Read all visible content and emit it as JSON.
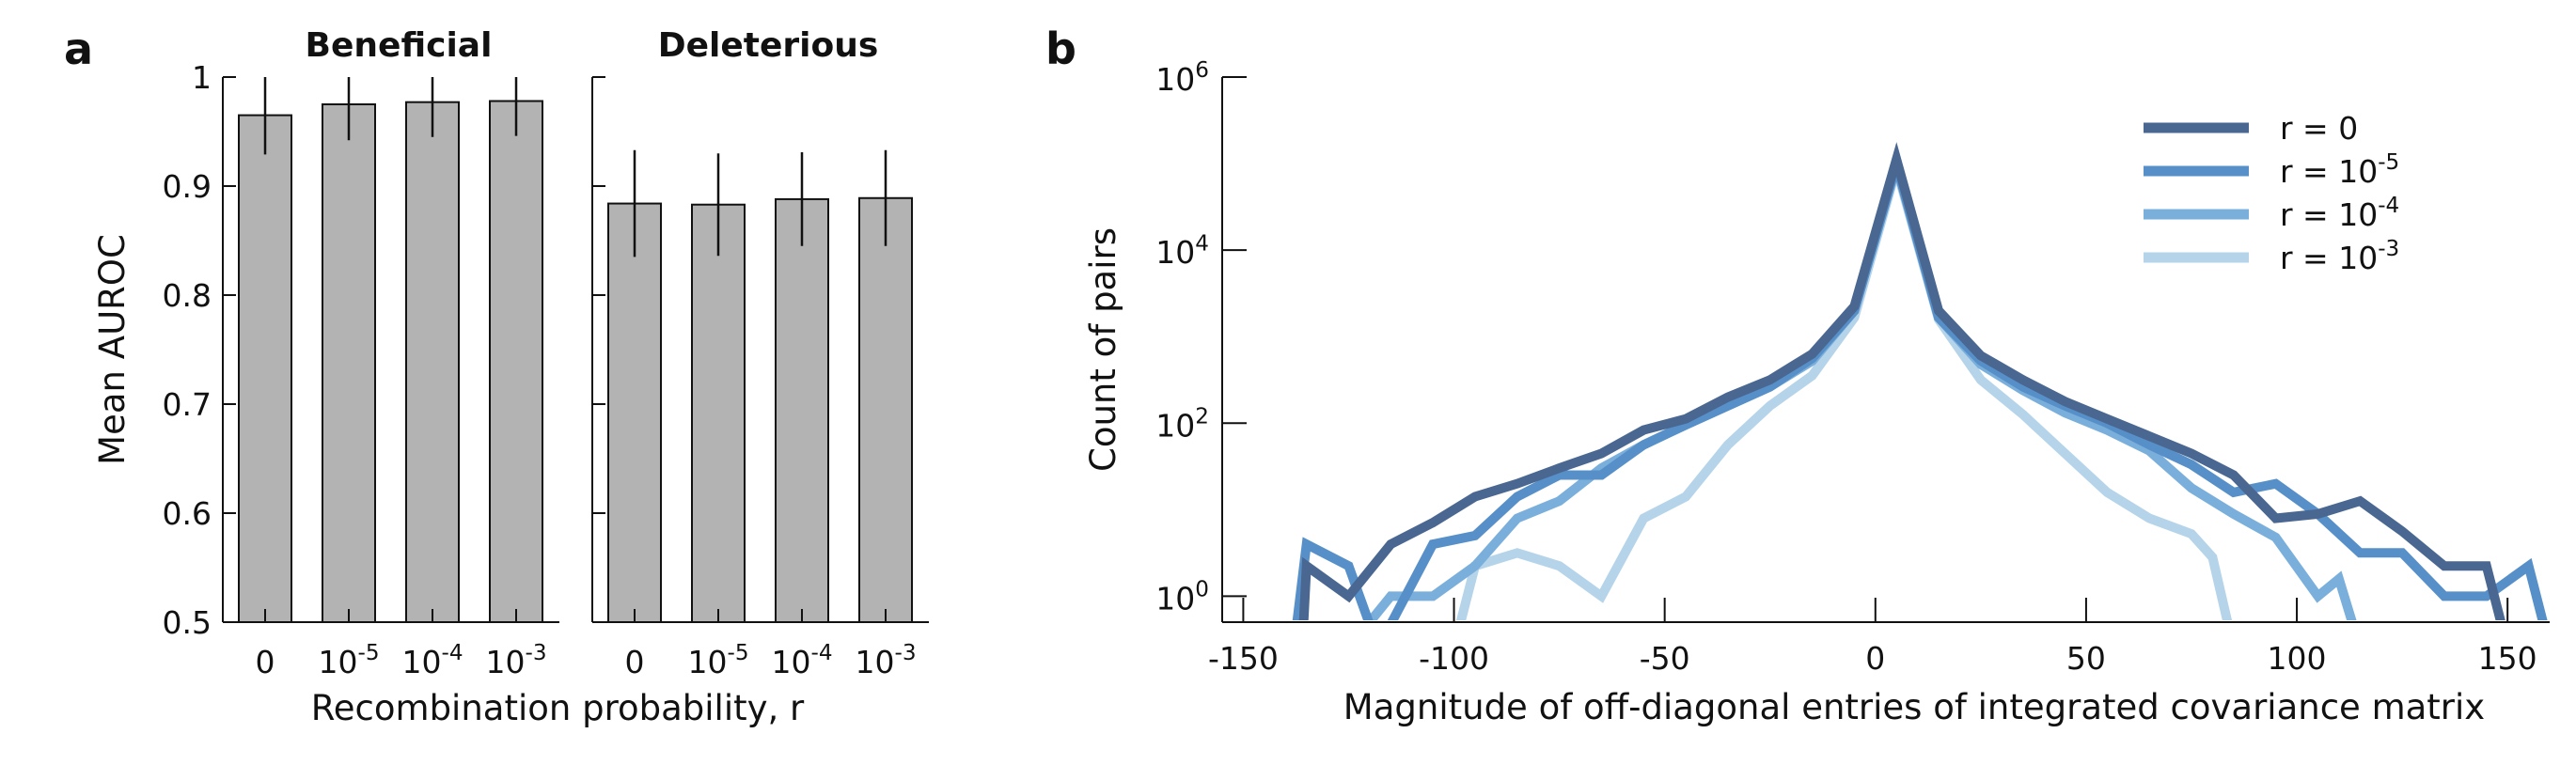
{
  "panels": {
    "a_label": "a",
    "b_label": "b"
  },
  "chart_data": [
    {
      "id": "a-left",
      "type": "bar",
      "title": "Beneficial",
      "ylabel": "Mean AUROC",
      "ylim": [
        0.5,
        1.0
      ],
      "yticks": [
        "0.5",
        "0.6",
        "0.7",
        "0.8",
        "0.9",
        "1"
      ],
      "categories": [
        {
          "base": "0",
          "exp": ""
        },
        {
          "base": "10",
          "exp": "-5"
        },
        {
          "base": "10",
          "exp": "-4"
        },
        {
          "base": "10",
          "exp": "-3"
        }
      ],
      "values": [
        0.965,
        0.975,
        0.977,
        0.978
      ],
      "errors": [
        0.036,
        0.033,
        0.032,
        0.032
      ],
      "bar_color": "#b3b3b3",
      "grid": false
    },
    {
      "id": "a-right",
      "type": "bar",
      "title": "Deleterious",
      "ylim": [
        0.5,
        1.0
      ],
      "categories": [
        {
          "base": "0",
          "exp": ""
        },
        {
          "base": "10",
          "exp": "-5"
        },
        {
          "base": "10",
          "exp": "-4"
        },
        {
          "base": "10",
          "exp": "-3"
        }
      ],
      "values": [
        0.884,
        0.883,
        0.888,
        0.889
      ],
      "errors": [
        0.049,
        0.047,
        0.043,
        0.044
      ],
      "bar_color": "#b3b3b3",
      "shared_xlabel": "Recombination probability, r",
      "grid": false
    },
    {
      "id": "b",
      "type": "line",
      "xlabel": "Magnitude of off-diagonal entries of integrated covariance matrix",
      "ylabel": "Count of pairs",
      "xlim": [
        -155,
        160
      ],
      "xticks": [
        -150,
        -100,
        -50,
        0,
        50,
        100,
        150
      ],
      "ylog": true,
      "ylim_log10": [
        -0.3,
        6.0
      ],
      "yticks": [
        {
          "base": "10",
          "exp": "0",
          "log": 0
        },
        {
          "base": "10",
          "exp": "2",
          "log": 2
        },
        {
          "base": "10",
          "exp": "4",
          "log": 4
        },
        {
          "base": "10",
          "exp": "6",
          "log": 6
        }
      ],
      "legend_position": "top-right",
      "grid": false,
      "series": [
        {
          "label": {
            "base": "r = 0",
            "exp": ""
          },
          "color": "#4a6791",
          "points": [
            [
              -136,
              -0.6
            ],
            [
              -135,
              0.35
            ],
            [
              -125,
              0.0
            ],
            [
              -115,
              0.6
            ],
            [
              -105,
              0.85
            ],
            [
              -95,
              1.15
            ],
            [
              -85,
              1.3
            ],
            [
              -75,
              1.48
            ],
            [
              -65,
              1.65
            ],
            [
              -55,
              1.92
            ],
            [
              -45,
              2.05
            ],
            [
              -35,
              2.3
            ],
            [
              -25,
              2.5
            ],
            [
              -15,
              2.8
            ],
            [
              -5,
              3.35
            ],
            [
              5,
              5.05
            ],
            [
              15,
              3.3
            ],
            [
              25,
              2.78
            ],
            [
              35,
              2.5
            ],
            [
              45,
              2.25
            ],
            [
              55,
              2.05
            ],
            [
              65,
              1.85
            ],
            [
              75,
              1.65
            ],
            [
              85,
              1.4
            ],
            [
              95,
              0.9
            ],
            [
              105,
              0.95
            ],
            [
              115,
              1.1
            ],
            [
              125,
              0.75
            ],
            [
              135,
              0.35
            ],
            [
              145,
              0.35
            ],
            [
              150,
              -0.6
            ]
          ]
        },
        {
          "label": {
            "base": "r = 10",
            "exp": "-5"
          },
          "color": "#5790c8",
          "points": [
            [
              -138,
              -0.6
            ],
            [
              -135,
              0.6
            ],
            [
              -125,
              0.35
            ],
            [
              -118,
              -0.6
            ],
            [
              -105,
              0.6
            ],
            [
              -95,
              0.7
            ],
            [
              -85,
              1.15
            ],
            [
              -75,
              1.4
            ],
            [
              -65,
              1.4
            ],
            [
              -55,
              1.75
            ],
            [
              -45,
              1.98
            ],
            [
              -35,
              2.2
            ],
            [
              -25,
              2.42
            ],
            [
              -15,
              2.75
            ],
            [
              -5,
              3.3
            ],
            [
              5,
              5.0
            ],
            [
              15,
              3.22
            ],
            [
              25,
              2.72
            ],
            [
              35,
              2.42
            ],
            [
              45,
              2.2
            ],
            [
              55,
              2.0
            ],
            [
              65,
              1.75
            ],
            [
              75,
              1.52
            ],
            [
              85,
              1.2
            ],
            [
              95,
              1.3
            ],
            [
              105,
              0.95
            ],
            [
              115,
              0.5
            ],
            [
              125,
              0.5
            ],
            [
              135,
              0.0
            ],
            [
              145,
              0.0
            ],
            [
              155,
              0.35
            ],
            [
              160,
              -0.6
            ]
          ]
        },
        {
          "label": {
            "base": "r = 10",
            "exp": "-4"
          },
          "color": "#7aafdb",
          "points": [
            [
              -125,
              -0.6
            ],
            [
              -115,
              0.0
            ],
            [
              -105,
              0.0
            ],
            [
              -95,
              0.35
            ],
            [
              -85,
              0.9
            ],
            [
              -75,
              1.1
            ],
            [
              -65,
              1.48
            ],
            [
              -55,
              1.75
            ],
            [
              -45,
              1.98
            ],
            [
              -35,
              2.2
            ],
            [
              -25,
              2.42
            ],
            [
              -15,
              2.72
            ],
            [
              -5,
              3.3
            ],
            [
              5,
              4.98
            ],
            [
              15,
              3.22
            ],
            [
              25,
              2.68
            ],
            [
              35,
              2.38
            ],
            [
              45,
              2.12
            ],
            [
              55,
              1.92
            ],
            [
              65,
              1.68
            ],
            [
              75,
              1.25
            ],
            [
              85,
              0.95
            ],
            [
              95,
              0.68
            ],
            [
              105,
              0.0
            ],
            [
              110,
              0.2
            ],
            [
              115,
              -0.6
            ]
          ]
        },
        {
          "label": {
            "base": "r = 10",
            "exp": "-3"
          },
          "color": "#b5d4ea",
          "points": [
            [
              -100,
              -0.6
            ],
            [
              -95,
              0.35
            ],
            [
              -85,
              0.5
            ],
            [
              -75,
              0.35
            ],
            [
              -65,
              0.0
            ],
            [
              -55,
              0.9
            ],
            [
              -45,
              1.15
            ],
            [
              -35,
              1.75
            ],
            [
              -25,
              2.2
            ],
            [
              -15,
              2.55
            ],
            [
              -5,
              3.22
            ],
            [
              5,
              4.95
            ],
            [
              15,
              3.2
            ],
            [
              25,
              2.5
            ],
            [
              35,
              2.1
            ],
            [
              45,
              1.65
            ],
            [
              55,
              1.2
            ],
            [
              65,
              0.9
            ],
            [
              75,
              0.72
            ],
            [
              80,
              0.45
            ],
            [
              85,
              -0.6
            ]
          ]
        }
      ]
    }
  ]
}
